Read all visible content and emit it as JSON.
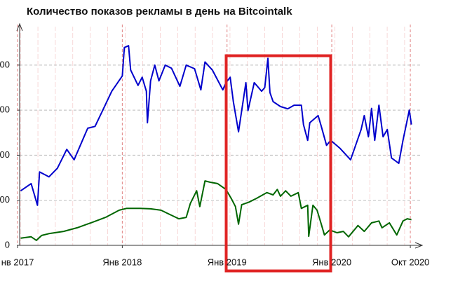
{
  "chart_data": {
    "type": "line",
    "title": "Количество показов рекламы в день на Bitcointalk",
    "xlim": [
      2017.02,
      2020.85
    ],
    "ylim": [
      0,
      4900
    ],
    "xticks": [
      {
        "value": 2017,
        "label": "нв 2017"
      },
      {
        "value": 2018,
        "label": "Янв 2018"
      },
      {
        "value": 2019,
        "label": "Янв 2019"
      },
      {
        "value": 2020,
        "label": "Янв 2020"
      },
      {
        "value": 2020.75,
        "label": "Окт 2020"
      }
    ],
    "yticks": [
      0,
      {
        "value": 1000,
        "label": "000"
      },
      {
        "value": 2000,
        "label": "000"
      },
      {
        "value": 3000,
        "label": "000"
      },
      {
        "value": 4000,
        "label": "000"
      }
    ],
    "grid": true,
    "series": [
      {
        "color": "#0000cc",
        "x": [
          2017.03,
          2017.13,
          2017.19,
          2017.21,
          2017.3,
          2017.38,
          2017.47,
          2017.54,
          2017.62,
          2017.67,
          2017.74,
          2017.82,
          2017.9,
          2018.0,
          2018.02,
          2018.06,
          2018.08,
          2018.15,
          2018.19,
          2018.23,
          2018.24,
          2018.27,
          2018.31,
          2018.35,
          2018.41,
          2018.47,
          2018.55,
          2018.61,
          2018.69,
          2018.75,
          2018.79,
          2018.86,
          2018.96,
          2018.99,
          2019.03,
          2019.06,
          2019.11,
          2019.18,
          2019.2,
          2019.26,
          2019.33,
          2019.36,
          2019.39,
          2019.41,
          2019.44,
          2019.51,
          2019.58,
          2019.64,
          2019.71,
          2019.73,
          2019.77,
          2019.79,
          2019.87,
          2019.9,
          2019.95,
          2019.99,
          2020.08,
          2020.18,
          2020.28,
          2020.31,
          2020.35,
          2020.38,
          2020.41,
          2020.45,
          2020.49,
          2020.53,
          2020.57,
          2020.64,
          2020.68,
          2020.74,
          2020.76
        ],
        "values": [
          1210,
          1370,
          890,
          1630,
          1520,
          1710,
          2130,
          1900,
          2330,
          2600,
          2640,
          3030,
          3420,
          3760,
          4390,
          4430,
          3890,
          3550,
          3730,
          3420,
          2720,
          3650,
          4000,
          3650,
          4000,
          3930,
          3530,
          4000,
          3920,
          3450,
          4070,
          3890,
          3450,
          3610,
          3730,
          3190,
          2520,
          3610,
          2990,
          3610,
          3420,
          3500,
          4150,
          3390,
          3190,
          3080,
          3030,
          3110,
          3110,
          2680,
          2330,
          2720,
          2880,
          2640,
          2220,
          2330,
          2150,
          1900,
          2570,
          2880,
          2410,
          3040,
          2330,
          3110,
          2410,
          2570,
          1940,
          1820,
          2330,
          3000,
          2680
        ]
      },
      {
        "color": "#006600",
        "x": [
          2017.03,
          2017.13,
          2017.18,
          2017.23,
          2017.3,
          2017.44,
          2017.57,
          2017.7,
          2017.84,
          2017.97,
          2018.04,
          2018.17,
          2018.27,
          2018.37,
          2018.44,
          2018.54,
          2018.61,
          2018.65,
          2018.71,
          2018.74,
          2018.79,
          2018.84,
          2018.91,
          2018.99,
          2019.04,
          2019.08,
          2019.11,
          2019.14,
          2019.21,
          2019.28,
          2019.38,
          2019.44,
          2019.48,
          2019.51,
          2019.56,
          2019.61,
          2019.68,
          2019.71,
          2019.77,
          2019.78,
          2019.82,
          2019.86,
          2019.9,
          2019.93,
          2019.98,
          2020.05,
          2020.11,
          2020.16,
          2020.25,
          2020.31,
          2020.38,
          2020.45,
          2020.48,
          2020.55,
          2020.62,
          2020.68,
          2020.72,
          2020.76
        ],
        "values": [
          160,
          190,
          110,
          220,
          260,
          310,
          390,
          500,
          620,
          780,
          820,
          820,
          810,
          780,
          700,
          590,
          620,
          930,
          1210,
          860,
          1430,
          1400,
          1370,
          1240,
          1040,
          860,
          470,
          900,
          960,
          1040,
          1170,
          1120,
          1240,
          1090,
          1210,
          1090,
          1170,
          820,
          890,
          200,
          890,
          780,
          470,
          230,
          340,
          280,
          310,
          190,
          440,
          310,
          500,
          540,
          390,
          500,
          230,
          540,
          590,
          570
        ]
      }
    ]
  }
}
